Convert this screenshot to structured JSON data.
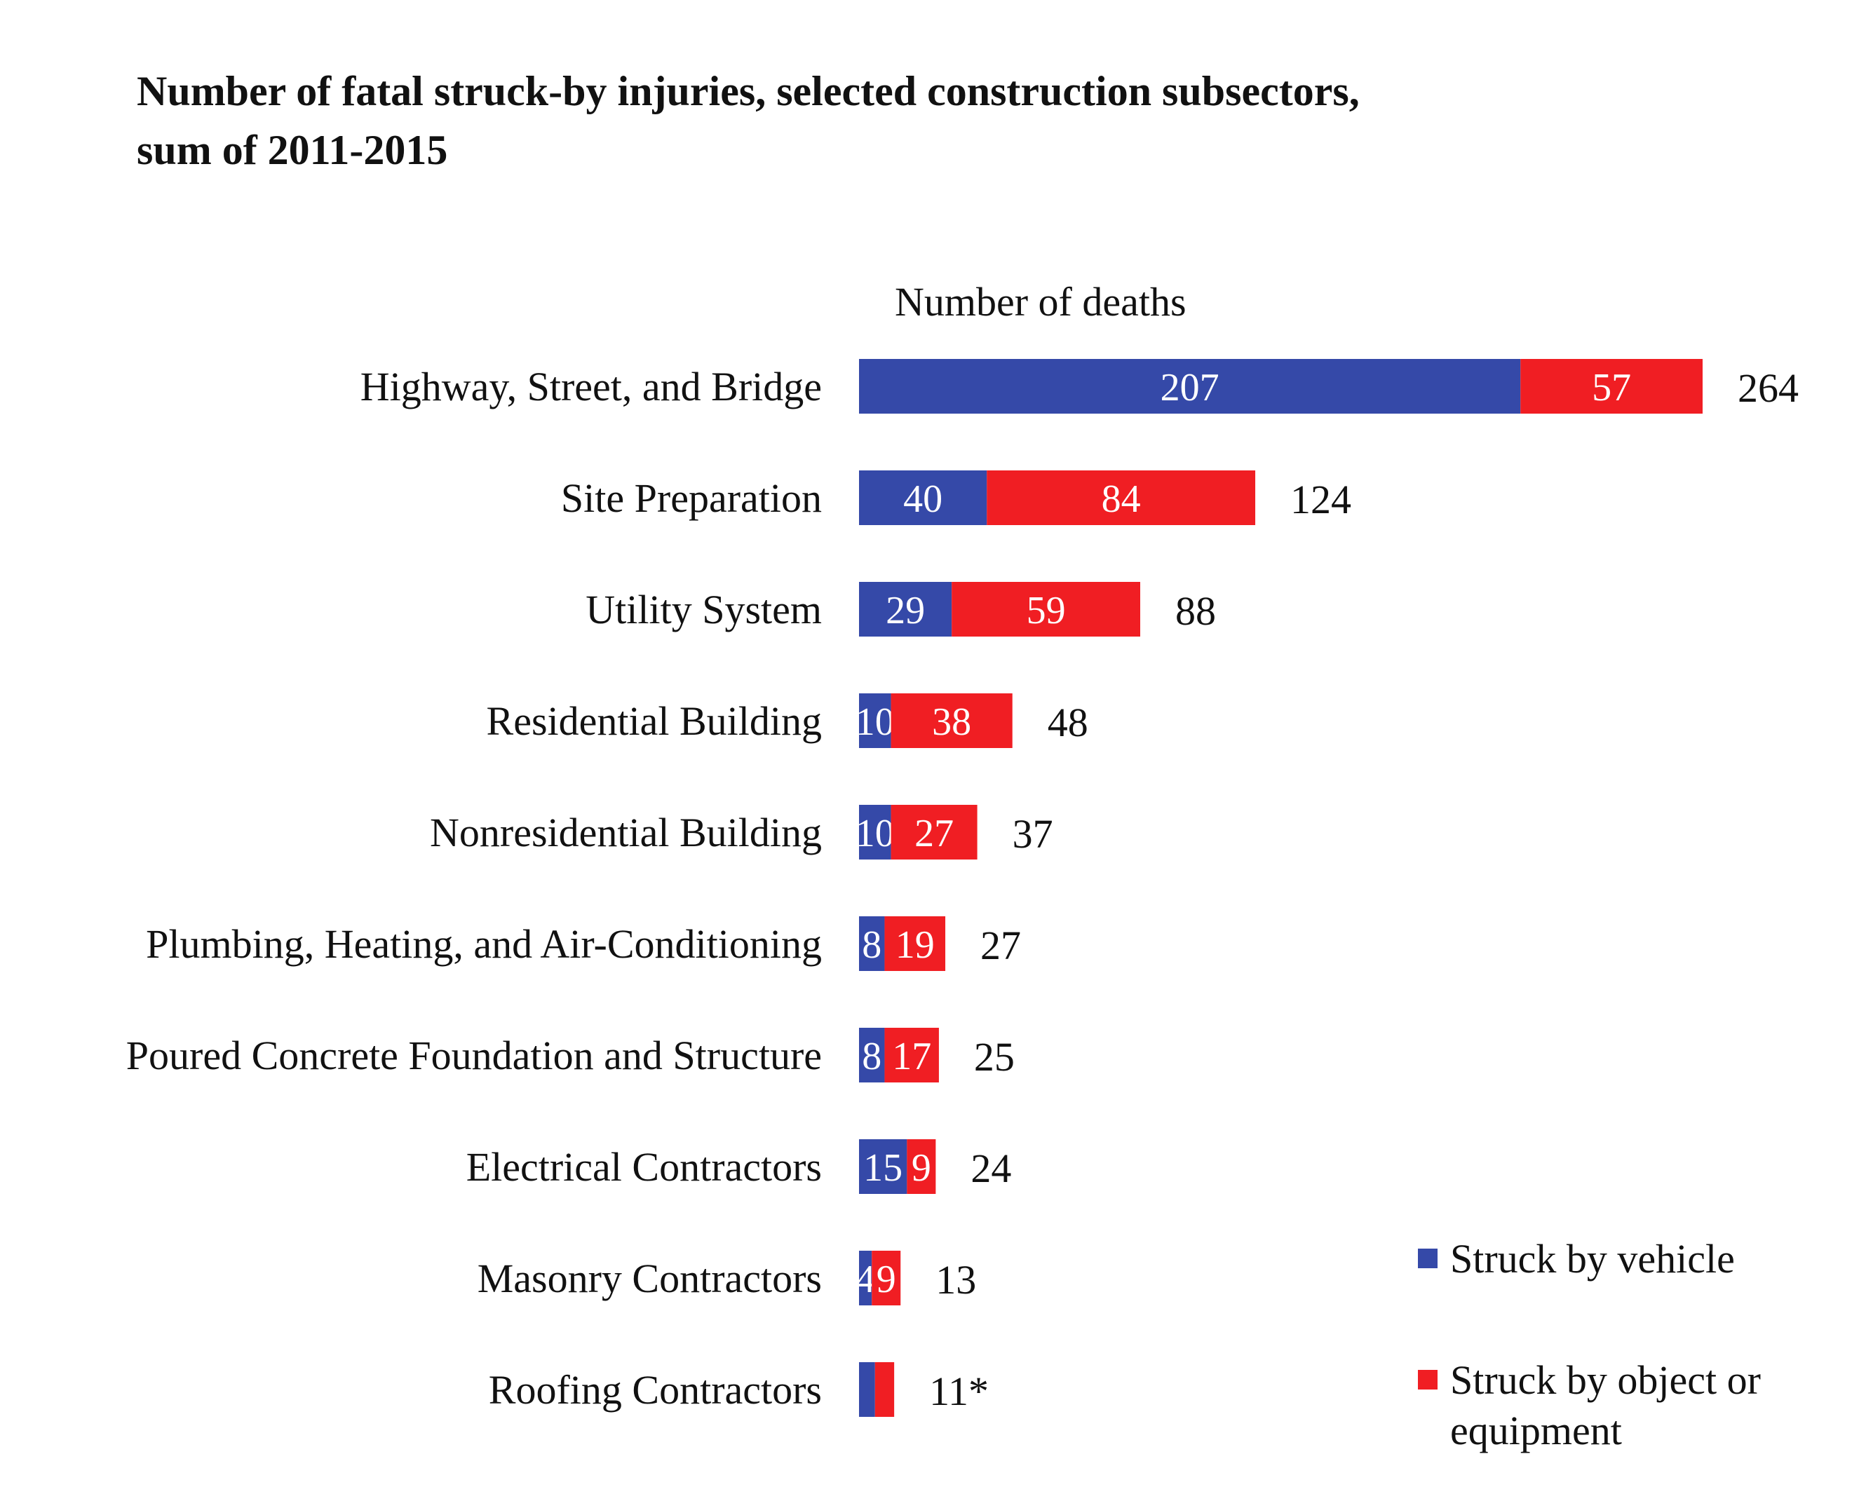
{
  "chart_data": {
    "type": "bar",
    "orientation": "horizontal",
    "stacked": true,
    "title": "Number of fatal struck-by injuries, selected construction subsectors, sum of 2011-2015",
    "title_lines": [
      "Number of fatal struck-by injuries, selected construction subsectors,",
      "sum of 2011-2015"
    ],
    "xlabel": "Number of deaths",
    "ylabel": "",
    "xlim": [
      0,
      264
    ],
    "grid": false,
    "legend_position": "bottom-right",
    "categories": [
      "Highway, Street, and Bridge",
      "Site Preparation",
      "Utility System",
      "Residential Building",
      "Nonresidential Building",
      "Plumbing, Heating, and Air-Conditioning",
      "Poured Concrete Foundation and Structure",
      "Electrical Contractors",
      "Masonry Contractors",
      "Roofing Contractors"
    ],
    "series": [
      {
        "name": "Struck by vehicle",
        "color": "#3549a8",
        "values": [
          207,
          40,
          29,
          10,
          10,
          8,
          8,
          15,
          4,
          5
        ],
        "labels_shown": [
          true,
          true,
          true,
          true,
          true,
          true,
          true,
          true,
          true,
          false
        ]
      },
      {
        "name": "Struck by object or equipment",
        "color": "#f01e23",
        "values": [
          57,
          84,
          59,
          38,
          27,
          19,
          17,
          9,
          9,
          6
        ],
        "labels_shown": [
          true,
          true,
          true,
          true,
          true,
          true,
          true,
          true,
          true,
          false
        ]
      }
    ],
    "totals": [
      "264",
      "124",
      "88",
      "48",
      "37",
      "27",
      "25",
      "24",
      "13",
      "11*"
    ],
    "legend_lines": [
      [
        "Struck by vehicle"
      ],
      [
        "Struck by object or",
        "equipment"
      ]
    ]
  }
}
